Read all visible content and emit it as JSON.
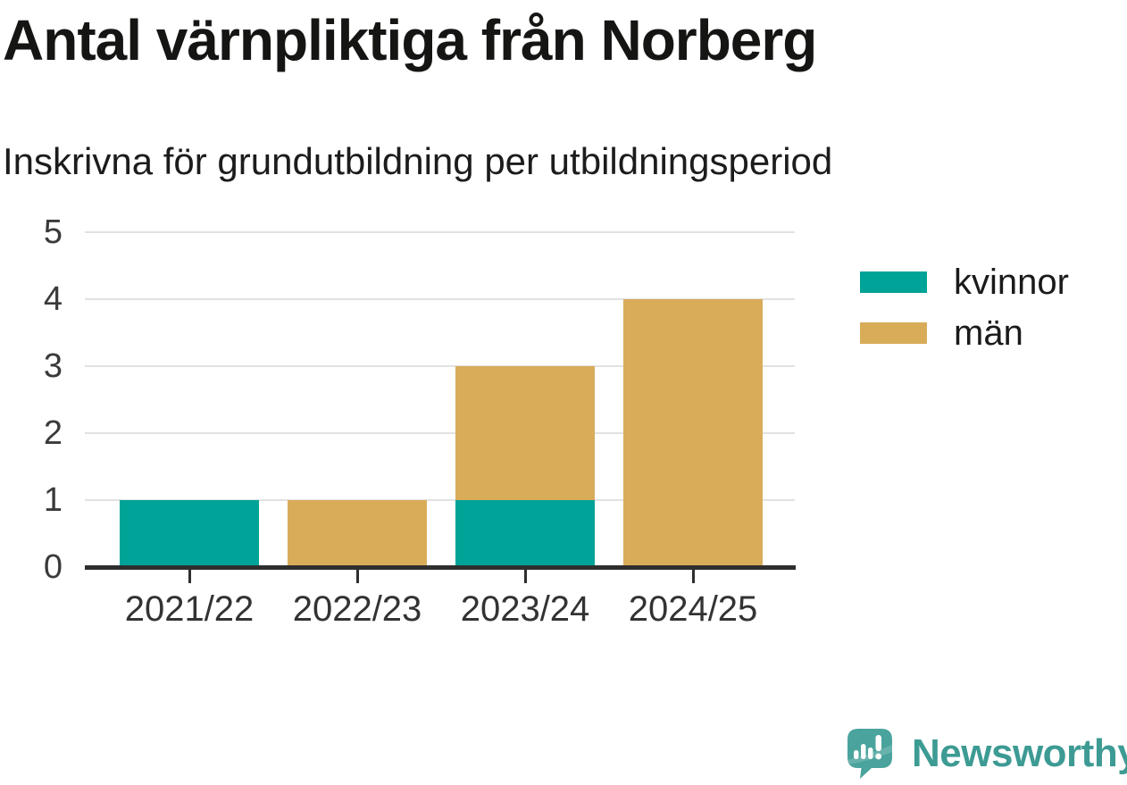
{
  "header": {
    "title": "Antal värnpliktiga från Norberg",
    "subtitle": "Inskrivna för grundutbildning per utbildningsperiod"
  },
  "chart_data": {
    "type": "bar",
    "stacked": true,
    "title": "Antal värnpliktiga från Norberg",
    "subtitle": "Inskrivna för grundutbildning per utbildningsperiod",
    "categories": [
      "2021/22",
      "2022/23",
      "2023/24",
      "2024/25"
    ],
    "series": [
      {
        "name": "kvinnor",
        "color": "#00a398",
        "values": [
          1,
          0,
          1,
          0
        ]
      },
      {
        "name": "män",
        "color": "#d9ac5a",
        "values": [
          0,
          1,
          2,
          4
        ]
      }
    ],
    "totals": [
      1,
      1,
      3,
      4
    ],
    "xlabel": "",
    "ylabel": "",
    "ylim": [
      0,
      5
    ],
    "yticks": [
      0,
      1,
      2,
      3,
      4,
      5
    ],
    "grid": true,
    "legend_position": "right"
  },
  "branding": {
    "logo_text": "Newsworthy",
    "logo_icon": "newsworthy-speech-bubble-bar-chart-icon",
    "logo_color": "#3d9b94",
    "logo_icon_color": "#4aa49d"
  },
  "colors": {
    "series_kvinnor": "#00a398",
    "series_man": "#d9ac5a",
    "gridline": "#e2e2e2",
    "axis": "#2e2e2e",
    "title_text": "#151513",
    "tick_text": "#333333"
  }
}
